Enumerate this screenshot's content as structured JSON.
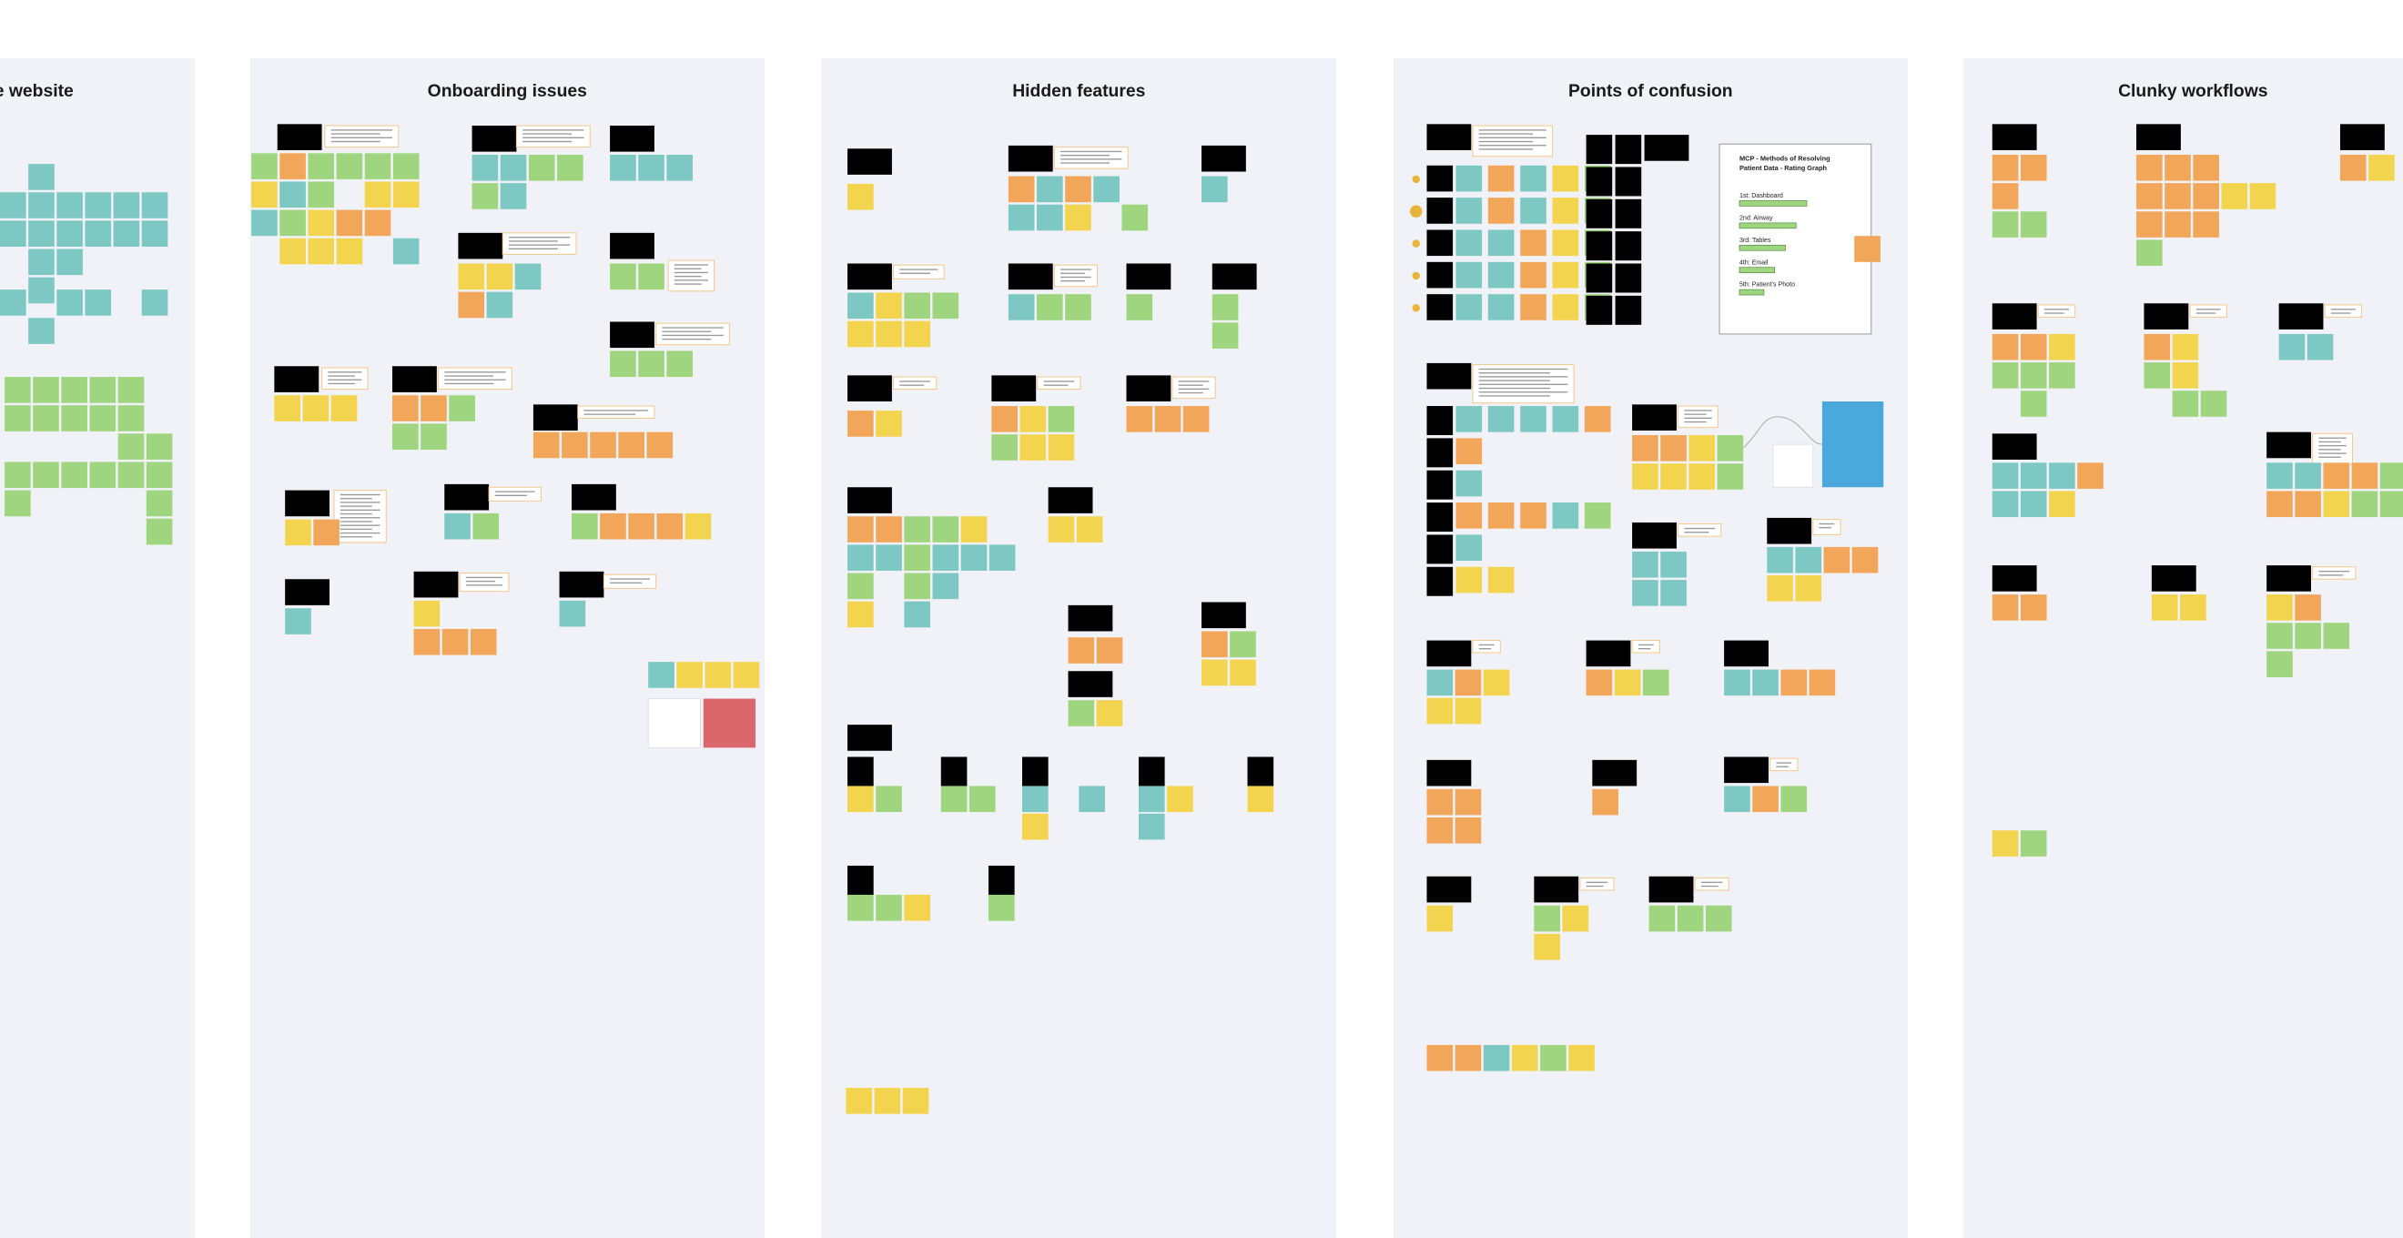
{
  "columns": [
    {
      "title": "e website"
    },
    {
      "title": "Onboarding issues"
    },
    {
      "title": "Hidden features"
    },
    {
      "title": "Points of confusion"
    },
    {
      "title": "Clunky workflows"
    }
  ],
  "document": {
    "title_lines": [
      "MCP - Methods of Resolving",
      "Patient Data - Rating Graph"
    ],
    "items": [
      "1st: Dashboard",
      "2nd: Airway",
      "3rd: Tables",
      "4th: Email",
      "5th: Patient's Photo"
    ]
  }
}
